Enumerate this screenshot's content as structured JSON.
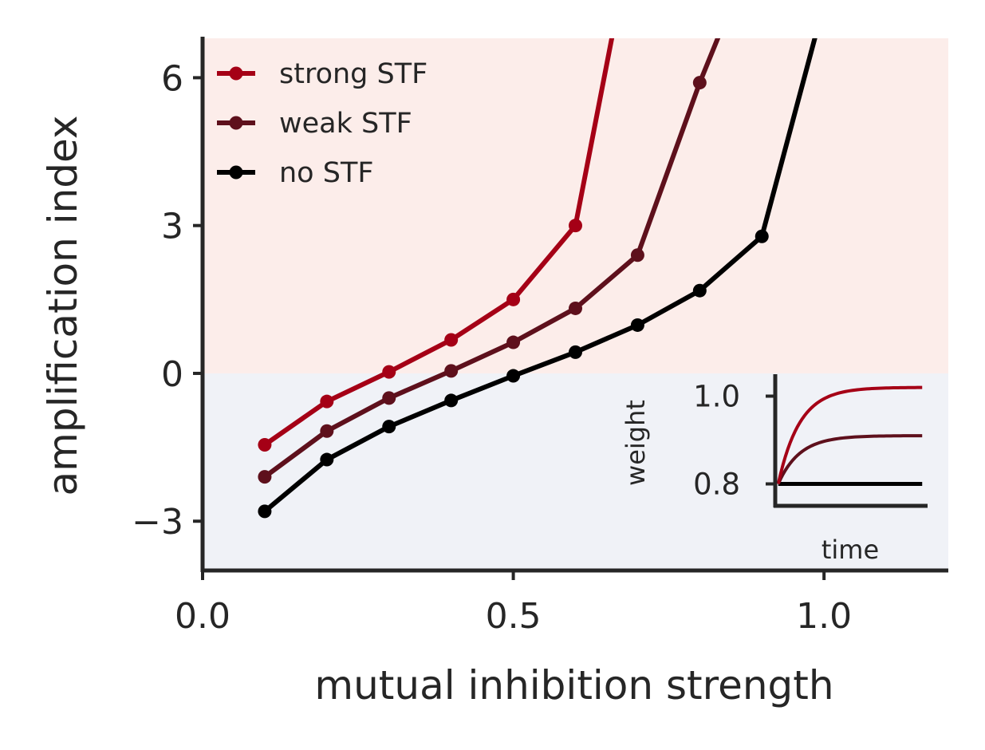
{
  "chart_data": [
    {
      "type": "line",
      "xlabel": "mutual inhibition strength",
      "ylabel": "amplification index",
      "xlim": [
        0.0,
        1.2
      ],
      "ylim": [
        -4.0,
        6.8
      ],
      "x_ticks": [
        0.0,
        0.5,
        1.0
      ],
      "x_tick_labels": [
        "0.0",
        "0.5",
        "1.0"
      ],
      "y_ticks": [
        -3,
        0,
        3,
        6
      ],
      "y_tick_labels": [
        "−3",
        "0",
        "3",
        "6"
      ],
      "grid": false,
      "legend_position": "top-left",
      "background_bands": [
        {
          "from": 0,
          "to": 6.8,
          "color": "#fcedea"
        },
        {
          "from": -4.0,
          "to": 0,
          "color": "#f0f2f7"
        }
      ],
      "series": [
        {
          "name": "strong STF",
          "color": "#a50016",
          "x": [
            0.1,
            0.2,
            0.3,
            0.4,
            0.5,
            0.6,
            0.7
          ],
          "y": [
            -1.45,
            -0.57,
            0.03,
            0.68,
            1.5,
            3.0,
            9.5
          ]
        },
        {
          "name": "weak STF",
          "color": "#5e101c",
          "x": [
            0.1,
            0.2,
            0.3,
            0.4,
            0.5,
            0.6,
            0.7,
            0.8,
            0.9
          ],
          "y": [
            -2.1,
            -1.17,
            -0.5,
            0.05,
            0.63,
            1.32,
            2.4,
            5.9,
            9.0
          ]
        },
        {
          "name": "no STF",
          "color": "#000000",
          "x": [
            0.1,
            0.2,
            0.3,
            0.4,
            0.5,
            0.6,
            0.7,
            0.8,
            0.9,
            1.0
          ],
          "y": [
            -2.8,
            -1.75,
            -1.08,
            -0.55,
            -0.05,
            0.43,
            0.98,
            1.68,
            2.78,
            7.5
          ]
        }
      ]
    },
    {
      "type": "line",
      "xlabel": "time",
      "ylabel": "weight",
      "xlim": [
        0,
        1
      ],
      "ylim": [
        0.75,
        1.05
      ],
      "y_ticks": [
        0.8,
        1.0
      ],
      "y_tick_labels": [
        "0.8",
        "1.0"
      ],
      "series": [
        {
          "color": "#a50016",
          "start": 0.8,
          "plateau": 1.02,
          "rate": 7
        },
        {
          "color": "#5e101c",
          "start": 0.8,
          "plateau": 0.91,
          "rate": 7
        },
        {
          "color": "#000000",
          "start": 0.8,
          "plateau": 0.8,
          "rate": 7
        }
      ]
    }
  ]
}
